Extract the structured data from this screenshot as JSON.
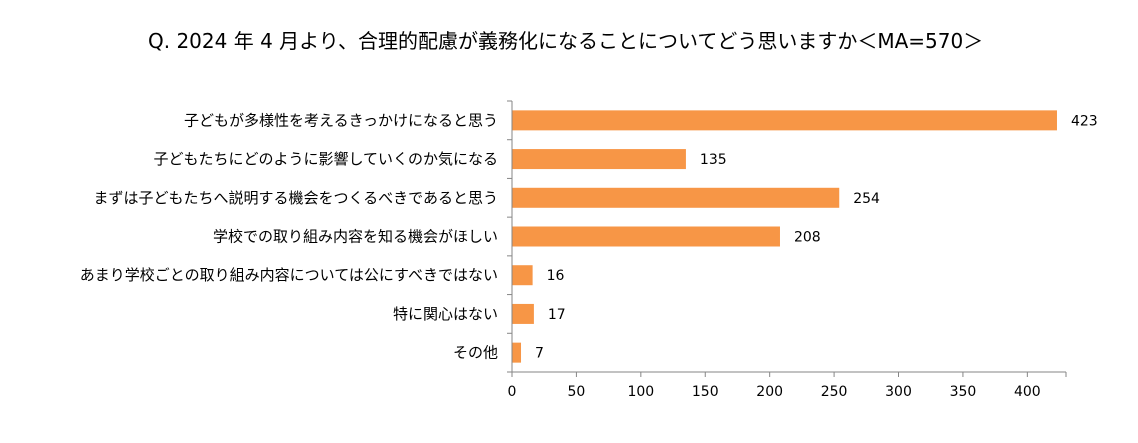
{
  "chart_data": {
    "type": "bar",
    "orientation": "horizontal",
    "title": "Q. 2024 年 4 月より、合理的配慮が義務化になることについてどう思いますか＜MA=570＞",
    "categories": [
      "子どもが多様性を考えるきっかけになると思う",
      "子どもたちにどのように影響していくのか気になる",
      "まずは子どもたちへ説明する機会をつくるべきであると思う",
      "学校での取り組み内容を知る機会がほしい",
      "あまり学校ごとの取り組み内容については公にすべきではない",
      "特に関心はない",
      "その他"
    ],
    "values": [
      423,
      135,
      254,
      208,
      16,
      17,
      7
    ],
    "xlim": [
      0,
      430
    ],
    "xticks": [
      0,
      50,
      100,
      150,
      200,
      250,
      300,
      350,
      400
    ],
    "grid": false,
    "legend": "none",
    "colors": {
      "bar": "#F79646",
      "axis": "#868686"
    }
  }
}
